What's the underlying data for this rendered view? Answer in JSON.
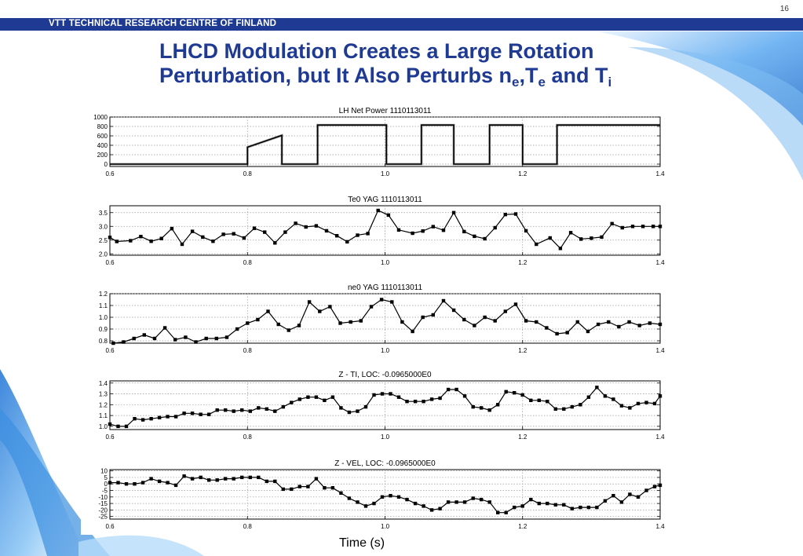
{
  "page_number": "16",
  "banner_text": "VTT TECHNICAL RESEARCH CENTRE OF FINLAND",
  "title": {
    "line1": "LHCD Modulation Creates a Large Rotation",
    "line2_a": "Perturbation, but It Also Perturbs n",
    "sub_e": "e",
    "comma": ",T",
    "sub_e2": "e",
    "and": " and T",
    "sub_i": "i"
  },
  "xlabel": "Time (s)",
  "colors": {
    "brand_blue": "#1f3a93",
    "deco_blue": "#3c8fe0",
    "trace": "#000000"
  },
  "chart_data": [
    {
      "type": "line",
      "title": "LH Net Power 1110113011",
      "xlim": [
        0.6,
        1.4
      ],
      "ylim": [
        -50,
        1000
      ],
      "xticks": [
        "0.6",
        "0.8",
        "1.0",
        "1.2",
        "1.4"
      ],
      "yticks": [
        "1000",
        "800",
        "600",
        "400",
        "200",
        "0"
      ],
      "ytick_values": [
        1000,
        800,
        600,
        400,
        200,
        0
      ],
      "markers": false,
      "x": [
        0.6,
        0.8,
        0.8,
        0.85,
        0.85,
        0.902,
        0.902,
        1.002,
        1.002,
        1.053,
        1.053,
        1.1,
        1.1,
        1.152,
        1.152,
        1.2,
        1.2,
        1.25,
        1.25,
        1.4
      ],
      "y": [
        0,
        0,
        360,
        610,
        0,
        0,
        830,
        830,
        0,
        0,
        830,
        830,
        0,
        0,
        830,
        830,
        0,
        0,
        830,
        830
      ]
    },
    {
      "type": "line",
      "title": "Te0 YAG 1110113011",
      "xlim": [
        0.6,
        1.4
      ],
      "ylim": [
        1.95,
        3.75
      ],
      "xticks": [
        "0.6",
        "0.8",
        "1.0",
        "1.2",
        "1.4"
      ],
      "yticks": [
        "3.5",
        "3.0",
        "2.5",
        "2.0"
      ],
      "ytick_values": [
        3.5,
        3.0,
        2.5,
        2.0
      ],
      "markers": true,
      "x": [
        0.6,
        0.61,
        0.63,
        0.645,
        0.66,
        0.675,
        0.69,
        0.705,
        0.72,
        0.735,
        0.75,
        0.765,
        0.78,
        0.795,
        0.81,
        0.825,
        0.84,
        0.855,
        0.87,
        0.885,
        0.9,
        0.915,
        0.93,
        0.945,
        0.96,
        0.975,
        0.99,
        1.005,
        1.02,
        1.04,
        1.055,
        1.07,
        1.085,
        1.1,
        1.115,
        1.13,
        1.145,
        1.16,
        1.175,
        1.19,
        1.205,
        1.22,
        1.24,
        1.255,
        1.27,
        1.285,
        1.3,
        1.315,
        1.33,
        1.345,
        1.36,
        1.375,
        1.39,
        1.4
      ],
      "y": [
        2.6,
        2.45,
        2.48,
        2.63,
        2.46,
        2.56,
        2.92,
        2.35,
        2.82,
        2.61,
        2.46,
        2.71,
        2.73,
        2.58,
        2.93,
        2.79,
        2.4,
        2.79,
        3.11,
        2.98,
        3.02,
        2.84,
        2.66,
        2.44,
        2.68,
        2.74,
        3.58,
        3.41,
        2.87,
        2.75,
        2.83,
        2.99,
        2.86,
        3.5,
        2.81,
        2.64,
        2.55,
        2.95,
        3.43,
        3.45,
        2.84,
        2.35,
        2.58,
        2.2,
        2.77,
        2.54,
        2.57,
        2.61,
        3.1,
        2.95,
        3.0,
        3.0,
        3.0,
        3.0
      ]
    },
    {
      "type": "line",
      "title": "ne0 YAG 1110113011",
      "xlim": [
        0.6,
        1.4
      ],
      "ylim": [
        0.78,
        1.2
      ],
      "xticks": [
        "0.6",
        "0.8",
        "1.0",
        "1.2",
        "1.4"
      ],
      "yticks": [
        "1.2",
        "1.1",
        "1.0",
        "0.9",
        "0.8"
      ],
      "ytick_values": [
        1.2,
        1.1,
        1.0,
        0.9,
        0.8
      ],
      "markers": true,
      "x": [
        0.605,
        0.62,
        0.635,
        0.65,
        0.665,
        0.68,
        0.695,
        0.71,
        0.725,
        0.74,
        0.755,
        0.77,
        0.785,
        0.8,
        0.815,
        0.83,
        0.845,
        0.86,
        0.875,
        0.89,
        0.905,
        0.92,
        0.935,
        0.95,
        0.965,
        0.98,
        0.995,
        1.01,
        1.025,
        1.04,
        1.055,
        1.07,
        1.085,
        1.1,
        1.115,
        1.13,
        1.145,
        1.16,
        1.175,
        1.19,
        1.205,
        1.22,
        1.235,
        1.25,
        1.265,
        1.28,
        1.295,
        1.31,
        1.325,
        1.34,
        1.355,
        1.37,
        1.385,
        1.4
      ],
      "y": [
        0.78,
        0.79,
        0.82,
        0.85,
        0.82,
        0.91,
        0.81,
        0.83,
        0.79,
        0.82,
        0.82,
        0.83,
        0.9,
        0.95,
        0.98,
        1.05,
        0.94,
        0.89,
        0.93,
        1.13,
        1.05,
        1.09,
        0.95,
        0.96,
        0.97,
        1.09,
        1.15,
        1.13,
        0.96,
        0.88,
        1.0,
        1.02,
        1.14,
        1.06,
        0.98,
        0.93,
        1.0,
        0.97,
        1.05,
        1.11,
        0.97,
        0.96,
        0.91,
        0.86,
        0.87,
        0.96,
        0.88,
        0.94,
        0.96,
        0.92,
        0.96,
        0.93,
        0.95,
        0.94
      ]
    },
    {
      "type": "line",
      "title": "Z - TI, LOC: -0.0965000E0",
      "xlim": [
        0.6,
        1.4
      ],
      "ylim": [
        0.97,
        1.42
      ],
      "xticks": [
        "0.6",
        "0.8",
        "1.0",
        "1.2",
        "1.4"
      ],
      "yticks": [
        "1.4",
        "1.3",
        "1.2",
        "1.1",
        "1.0"
      ],
      "ytick_values": [
        1.4,
        1.3,
        1.2,
        1.1,
        1.0
      ],
      "markers": true,
      "x": [
        0.6,
        0.612,
        0.624,
        0.636,
        0.648,
        0.66,
        0.672,
        0.684,
        0.696,
        0.708,
        0.72,
        0.732,
        0.744,
        0.756,
        0.768,
        0.78,
        0.792,
        0.804,
        0.816,
        0.828,
        0.84,
        0.852,
        0.864,
        0.876,
        0.888,
        0.9,
        0.912,
        0.924,
        0.936,
        0.948,
        0.96,
        0.972,
        0.984,
        0.996,
        1.008,
        1.02,
        1.032,
        1.044,
        1.056,
        1.068,
        1.08,
        1.092,
        1.104,
        1.116,
        1.128,
        1.14,
        1.152,
        1.164,
        1.176,
        1.188,
        1.2,
        1.212,
        1.224,
        1.236,
        1.248,
        1.26,
        1.272,
        1.284,
        1.296,
        1.308,
        1.32,
        1.332,
        1.344,
        1.356,
        1.368,
        1.38,
        1.392,
        1.4
      ],
      "y": [
        1.02,
        1.0,
        1.0,
        1.07,
        1.06,
        1.07,
        1.08,
        1.09,
        1.09,
        1.12,
        1.12,
        1.11,
        1.11,
        1.15,
        1.15,
        1.14,
        1.15,
        1.14,
        1.17,
        1.16,
        1.14,
        1.18,
        1.22,
        1.25,
        1.27,
        1.27,
        1.24,
        1.27,
        1.17,
        1.13,
        1.14,
        1.18,
        1.29,
        1.3,
        1.3,
        1.27,
        1.23,
        1.23,
        1.23,
        1.25,
        1.26,
        1.34,
        1.34,
        1.28,
        1.18,
        1.17,
        1.15,
        1.2,
        1.32,
        1.31,
        1.29,
        1.24,
        1.24,
        1.23,
        1.16,
        1.16,
        1.18,
        1.2,
        1.27,
        1.36,
        1.28,
        1.25,
        1.19,
        1.17,
        1.21,
        1.22,
        1.21,
        1.28
      ]
    },
    {
      "type": "line",
      "title": "Z - VEL, LOC: -0.0965000E0",
      "xlim": [
        0.6,
        1.4
      ],
      "ylim": [
        -27,
        11
      ],
      "xticks": [
        "0.6",
        "0.8",
        "1.0",
        "1.2",
        "1.4"
      ],
      "yticks": [
        "10",
        "5",
        "0",
        "-5",
        "-10",
        "-15",
        "-20",
        "-25"
      ],
      "ytick_values": [
        10,
        5,
        0,
        -5,
        -10,
        -15,
        -20,
        -25
      ],
      "markers": true,
      "x": [
        0.6,
        0.612,
        0.624,
        0.636,
        0.648,
        0.66,
        0.672,
        0.684,
        0.696,
        0.708,
        0.72,
        0.732,
        0.744,
        0.756,
        0.768,
        0.78,
        0.792,
        0.804,
        0.816,
        0.828,
        0.84,
        0.852,
        0.864,
        0.876,
        0.888,
        0.9,
        0.912,
        0.924,
        0.936,
        0.948,
        0.96,
        0.972,
        0.984,
        0.996,
        1.008,
        1.02,
        1.032,
        1.044,
        1.056,
        1.068,
        1.08,
        1.092,
        1.104,
        1.116,
        1.128,
        1.14,
        1.152,
        1.164,
        1.176,
        1.188,
        1.2,
        1.212,
        1.224,
        1.236,
        1.248,
        1.26,
        1.272,
        1.284,
        1.296,
        1.308,
        1.32,
        1.332,
        1.344,
        1.356,
        1.368,
        1.38,
        1.392,
        1.4
      ],
      "y": [
        1,
        1,
        0,
        0,
        1,
        4,
        2,
        1,
        -1,
        6,
        4,
        5,
        3,
        3,
        4,
        4,
        5,
        5,
        5,
        2,
        2,
        -4,
        -4,
        -2,
        -2,
        4,
        -3,
        -3,
        -7,
        -11,
        -14,
        -17,
        -15,
        -10,
        -9,
        -10,
        -12,
        -15,
        -17,
        -20,
        -19,
        -14,
        -14,
        -14,
        -11,
        -12,
        -14,
        -22,
        -22,
        -18,
        -17,
        -12,
        -15,
        -15,
        -16,
        -16,
        -19,
        -18,
        -18,
        -18,
        -13,
        -9,
        -14,
        -8,
        -10,
        -5,
        -2,
        -1
      ]
    }
  ]
}
